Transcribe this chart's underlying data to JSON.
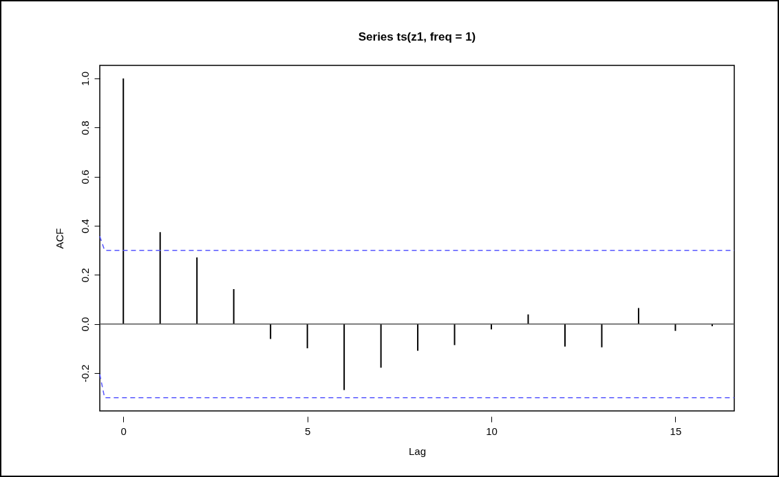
{
  "chart_data": {
    "type": "bar",
    "title": "Series  ts(z1, freq = 1)",
    "xlabel": "Lag",
    "ylabel": "ACF",
    "x": [
      0,
      1,
      2,
      3,
      4,
      5,
      6,
      7,
      8,
      9,
      10,
      11,
      12,
      13,
      14,
      15,
      16
    ],
    "series": [
      {
        "color": "#000000",
        "values": [
          1.0,
          0.374,
          0.271,
          0.142,
          -0.061,
          -0.099,
          -0.269,
          -0.178,
          -0.109,
          -0.086,
          -0.022,
          0.039,
          -0.092,
          -0.095,
          0.065,
          -0.028,
          -0.009
        ]
      },
      {
        "type": "line",
        "color": "#5555ff",
        "line_style": "dashed",
        "x": [
          -0.64,
          -0.51,
          16.6
        ],
        "values": [
          0.357,
          0.3,
          0.3
        ]
      },
      {
        "type": "line",
        "color": "#5555ff",
        "line_style": "dashed",
        "x": [
          -0.64,
          -0.51,
          16.6
        ],
        "values": [
          -0.205,
          -0.3,
          -0.3
        ]
      }
    ],
    "ref_lines": [
      {
        "axis": "y",
        "value": 0,
        "color": "#555555"
      }
    ],
    "xlim": [
      -0.64,
      16.6
    ],
    "xticks": [
      0,
      5,
      10,
      15
    ],
    "ylim": [
      -0.354,
      1.053
    ],
    "yticks": [
      {
        "value": -0.2,
        "label": "-0.2"
      },
      {
        "value": 0,
        "label": "0.0"
      },
      0.2,
      0.4,
      0.6,
      0.8,
      {
        "value": 1,
        "label": "1.0"
      }
    ]
  }
}
